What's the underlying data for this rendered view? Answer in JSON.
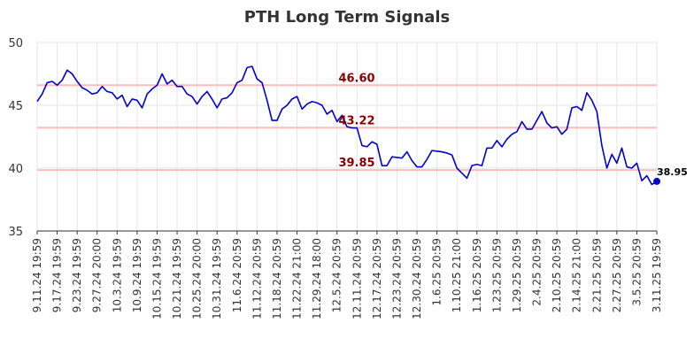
{
  "chart_data": {
    "type": "line",
    "title": "PTH Long Term Signals",
    "xlabel": "",
    "ylabel": "",
    "ylim": [
      35,
      50
    ],
    "yticks": [
      35,
      40,
      45,
      50
    ],
    "grid": true,
    "line_color": "#0000cc",
    "hline_color": "#ffbbbb",
    "hlabel_color": "#8b0000",
    "xtick_labels": [
      "9.11.24 19:59",
      "9.17.24 19:59",
      "9.23.24 19:59",
      "9.27.24 20:00",
      "10.3.24 19:59",
      "10.9.24 19:59",
      "10.15.24 19:59",
      "10.21.24 19:59",
      "10.25.24 20:00",
      "10.31.24 19:59",
      "11.6.24 20:59",
      "11.12.24 20:59",
      "11.18.24 20:59",
      "11.22.24 21:00",
      "11.29.24 18:00",
      "12.5.24 20:59",
      "12.11.24 20:59",
      "12.17.24 20:59",
      "12.23.24 20:59",
      "12.30.24 20:59",
      "1.6.25 20:59",
      "1.10.25 21:00",
      "1.16.25 20:59",
      "1.23.25 20:59",
      "1.29.25 20:59",
      "2.4.25 20:59",
      "2.10.25 20:59",
      "2.14.25 21:00",
      "2.21.25 20:59",
      "2.27.25 20:59",
      "3.5.25 20:59",
      "3.11.25 19:59"
    ],
    "horizontal_lines": [
      {
        "value": 46.6,
        "label": "46.60"
      },
      {
        "value": 43.22,
        "label": "43.22"
      },
      {
        "value": 39.85,
        "label": "39.85"
      }
    ],
    "last_point": {
      "value": 38.95,
      "label": "38.95"
    },
    "series": [
      {
        "values": [
          45.3,
          45.9,
          46.8,
          46.9,
          46.6,
          47.0,
          47.8,
          47.5,
          46.9,
          46.4,
          46.2,
          45.9,
          46.0,
          46.5,
          46.1,
          46.0,
          45.5,
          45.8,
          44.9,
          45.5,
          45.4,
          44.8,
          45.9,
          46.3,
          46.6,
          47.5,
          46.7,
          47.0,
          46.5,
          46.5,
          45.9,
          45.7,
          45.1,
          45.7,
          46.1,
          45.5,
          44.8,
          45.5,
          45.6,
          46.0,
          46.8,
          47.0,
          48.0,
          48.1,
          47.1,
          46.8,
          45.4,
          43.8,
          43.8,
          44.7,
          45.0,
          45.5,
          45.7,
          44.7,
          45.1,
          45.3,
          45.2,
          45.0,
          44.3,
          44.6,
          43.7,
          44.2,
          43.3,
          43.2,
          43.2,
          41.8,
          41.7,
          42.1,
          41.9,
          40.2,
          40.2,
          40.9,
          40.85,
          40.8,
          41.3,
          40.6,
          40.1,
          40.1,
          40.7,
          41.4,
          41.35,
          41.3,
          41.2,
          41.05,
          40.0,
          39.6,
          39.2,
          40.2,
          40.3,
          40.2,
          41.6,
          41.6,
          42.2,
          41.7,
          42.3,
          42.7,
          42.9,
          43.7,
          43.1,
          43.1,
          43.8,
          44.5,
          43.6,
          43.2,
          43.3,
          42.7,
          43.1,
          44.8,
          44.9,
          44.6,
          46.0,
          45.4,
          44.5,
          41.8,
          40.0,
          41.1,
          40.4,
          41.6,
          40.1,
          40.0,
          40.4,
          39.0,
          39.4,
          38.7,
          38.95
        ]
      }
    ]
  }
}
